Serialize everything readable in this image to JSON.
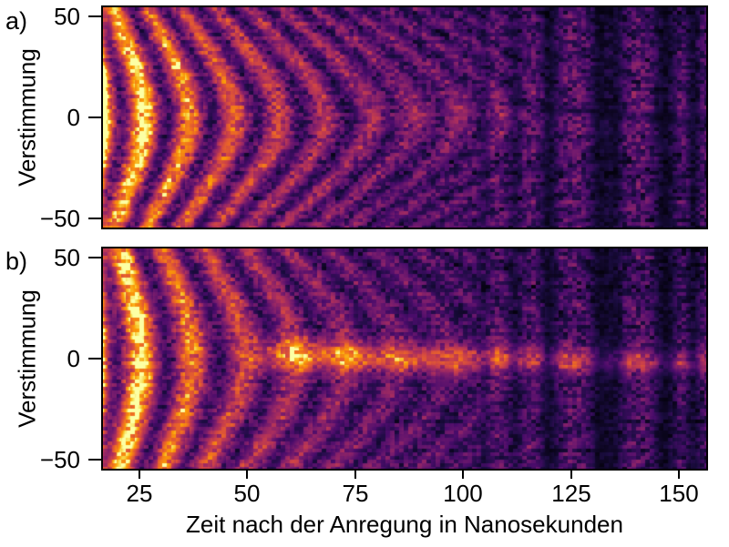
{
  "figure": {
    "background": "#ffffff",
    "xlabel": "Zeit nach der Anregung in Nanosekunden",
    "xticks": [
      "25",
      "50",
      "75",
      "100",
      "125",
      "150"
    ],
    "yticks": [
      "50",
      "0",
      "−50"
    ],
    "panels": [
      {
        "label": "a)",
        "ylabel": "Verstimmung"
      },
      {
        "label": "b)",
        "ylabel": "Verstimmung"
      }
    ]
  },
  "chart_data": {
    "type": "heatmap",
    "title": "",
    "xlabel": "Zeit nach der Anregung in Nanosekunden",
    "ylabel": "Verstimmung",
    "x_range": [
      16.5,
      156.3
    ],
    "y_range": [
      -54.5,
      54.5
    ],
    "x_ticks": [
      25,
      50,
      75,
      100,
      125,
      150
    ],
    "y_ticks": [
      50,
      0,
      -50
    ],
    "grid": false,
    "legend": "none",
    "colormap": {
      "name": "inferno",
      "stops": [
        [
          0.0,
          "#000004"
        ],
        [
          0.125,
          "#1b0c41"
        ],
        [
          0.25,
          "#4a0c6b"
        ],
        [
          0.375,
          "#781c6d"
        ],
        [
          0.5,
          "#a52c60"
        ],
        [
          0.625,
          "#cf4446"
        ],
        [
          0.75,
          "#ed6925"
        ],
        [
          0.875,
          "#fb9b06"
        ],
        [
          0.94,
          "#f7d13d"
        ],
        [
          1.0,
          "#fcffa4"
        ]
      ]
    },
    "model": {
      "description": "Rabi-chevron interference vs time (ns) and detuning: v = base(t) + amp*exp(-(t-t0)/tau)*(om^2/W^2)^lor_exp*sin^2(pi*(W*t-phi)), W=sqrt(om^2+(k*d)^2); plus center ridge, diagonal dark streak, vertical dark/bright detector bands, blocky noise",
      "panels": [
        {
          "id": "a",
          "seed": 101,
          "om": 0.0955,
          "k": 0.0016,
          "phi": 0.0,
          "amp": 0.95,
          "tau": 45,
          "lor_exp": 0.6,
          "base": [
            0.16,
            0.1,
            60
          ],
          "ridge": {
            "amp": 0.1,
            "sigma": 7.0,
            "mu0": 3.0,
            "drift": -0.03,
            "t_on": 70,
            "t_full": 90,
            "tau": 140
          },
          "streak": {
            "depth": 0.45,
            "sigma": 2.2,
            "mu0": 6.3,
            "mu_t0": 113,
            "slope": -0.21,
            "t_on": 106,
            "t_full": 120
          }
        },
        {
          "id": "b",
          "seed": 202,
          "om": 0.0833,
          "k": 0.0011,
          "phi": -0.375,
          "amp": 0.95,
          "tau": 38,
          "lor_exp": 0.5,
          "base": [
            0.16,
            0.1,
            60
          ],
          "ridge": {
            "amp": 0.52,
            "sigma": 5.2,
            "mu0": 1.5,
            "drift": -0.05,
            "t_on": 46,
            "t_full": 60,
            "tau": 170
          },
          "streak": {
            "depth": 0.22,
            "sigma": 3.0,
            "mu0": -7.0,
            "mu_t0": 110,
            "slope": -0.05,
            "t_on": 100,
            "t_full": 118
          }
        }
      ],
      "dark_bands": [
        [
          104.8,
          1.0,
          0.28
        ],
        [
          112.0,
          1.2,
          0.38
        ],
        [
          119.9,
          1.5,
          0.6
        ],
        [
          131.8,
          1.9,
          0.62
        ],
        [
          135.3,
          1.2,
          0.5
        ],
        [
          146.8,
          1.8,
          0.62
        ],
        [
          153.3,
          1.1,
          0.5
        ]
      ],
      "bright_bands": [
        [
          108.0,
          1.2,
          0.15
        ],
        [
          116.2,
          1.5,
          0.2
        ],
        [
          125.8,
          2.6,
          0.28
        ],
        [
          141.0,
          2.4,
          0.26
        ],
        [
          150.6,
          1.3,
          0.2
        ],
        [
          156.0,
          1.0,
          0.15
        ]
      ],
      "noise": {
        "block_w": 5,
        "block_h": 4,
        "mult": 0.18,
        "add": 0.11,
        "row": 0.03
      },
      "edge_glow": [
        0.3,
        1.3
      ]
    }
  }
}
